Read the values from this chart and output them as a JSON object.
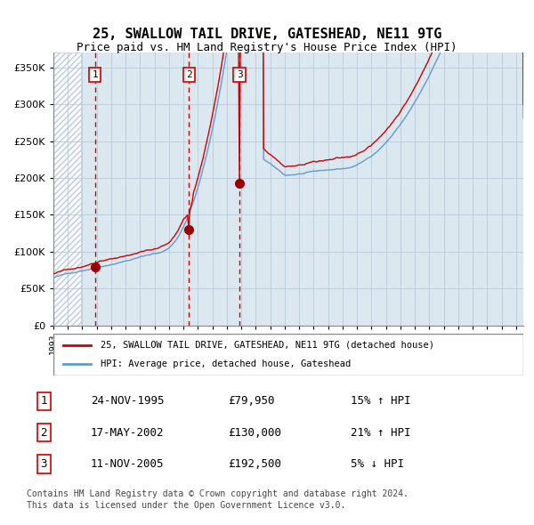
{
  "title": "25, SWALLOW TAIL DRIVE, GATESHEAD, NE11 9TG",
  "subtitle": "Price paid vs. HM Land Registry's House Price Index (HPI)",
  "legend_line1": "25, SWALLOW TAIL DRIVE, GATESHEAD, NE11 9TG (detached house)",
  "legend_line2": "HPI: Average price, detached house, Gateshead",
  "sale1_date": "24-NOV-1995",
  "sale1_price": 79950,
  "sale1_hpi": "15% ↑ HPI",
  "sale2_date": "17-MAY-2002",
  "sale2_price": 130000,
  "sale2_hpi": "21% ↑ HPI",
  "sale3_date": "11-NOV-2005",
  "sale3_price": 192500,
  "sale3_hpi": "5% ↓ HPI",
  "footnote1": "Contains HM Land Registry data © Crown copyright and database right 2024.",
  "footnote2": "This data is licensed under the Open Government Licence v3.0.",
  "hatch_color": "#c8d4e0",
  "grid_color": "#b0c4d8",
  "bg_color": "#dce8f0",
  "plot_bg": "#dce8f0",
  "red_line_color": "#cc0000",
  "blue_line_color": "#6699cc",
  "sale_dot_color": "#990000",
  "vline_color": "#cc0000",
  "ylim": [
    0,
    370000
  ],
  "yticks": [
    0,
    50000,
    100000,
    150000,
    200000,
    250000,
    300000,
    350000
  ],
  "start_year": 1993,
  "end_year": 2025
}
